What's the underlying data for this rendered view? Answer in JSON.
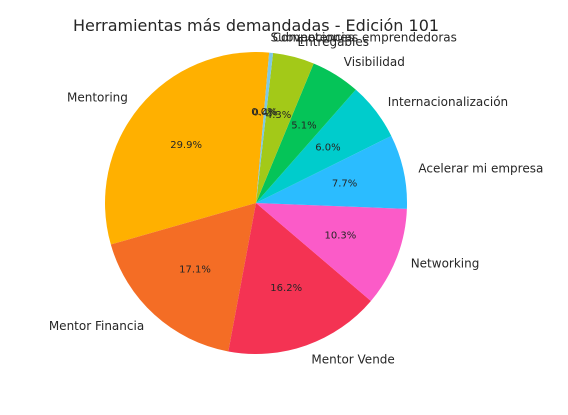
{
  "chart_data": {
    "type": "pie",
    "title": "Herramientas más demandadas - Edición 101",
    "slices": [
      {
        "label": "Mentoring",
        "value": 29.9,
        "pct_label": "29.9%",
        "color": "#ffb000"
      },
      {
        "label": "Mentor Financia",
        "value": 17.1,
        "pct_label": "17.1%",
        "color": "#f46d25"
      },
      {
        "label": "Mentor Vende",
        "value": 16.2,
        "pct_label": "16.2%",
        "color": "#f43353"
      },
      {
        "label": "Networking",
        "value": 10.3,
        "pct_label": "10.3%",
        "color": "#fb5bc8"
      },
      {
        "label": "Acelerar mi empresa",
        "value": 7.7,
        "pct_label": "7.7%",
        "color": "#2bbcff"
      },
      {
        "label": "Internacionalización",
        "value": 6.0,
        "pct_label": "6.0%",
        "color": "#00cccc"
      },
      {
        "label": "Visibilidad",
        "value": 5.1,
        "pct_label": "5.1%",
        "color": "#05c458"
      },
      {
        "label": "Entregables",
        "value": 4.3,
        "pct_label": "4.3%",
        "color": "#a3c918"
      },
      {
        "label": "Competencias emprendedoras",
        "value": 0.4,
        "pct_label": "0.4%",
        "color": "#7ec8e3"
      },
      {
        "label": "Subvenciones",
        "value": 0.0,
        "pct_label": "0.0%",
        "color": "#c49cde"
      }
    ]
  }
}
